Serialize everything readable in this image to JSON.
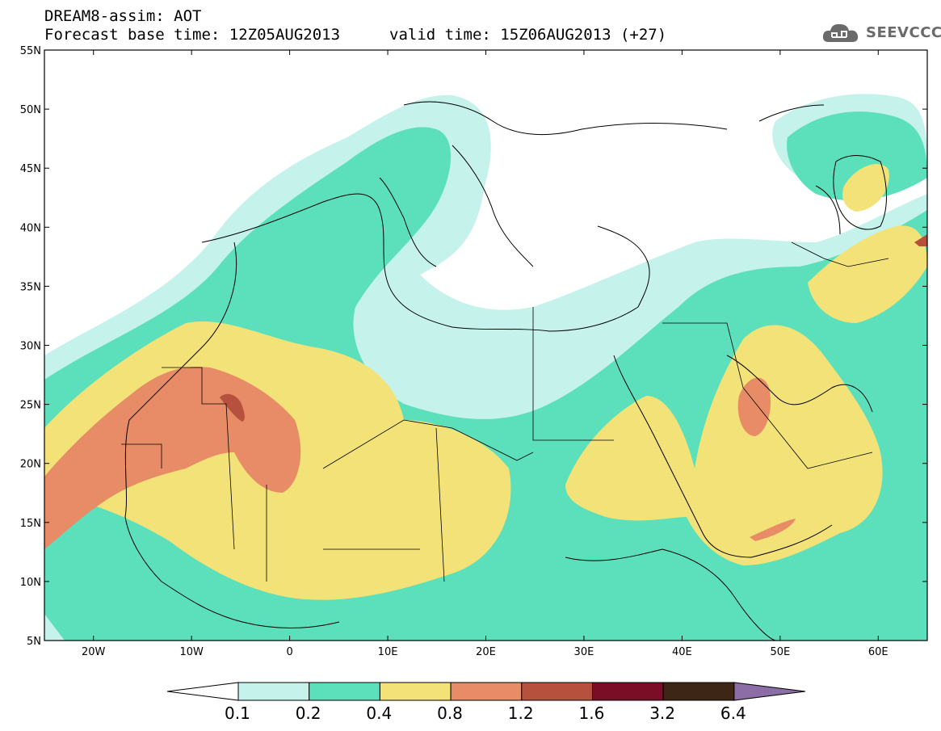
{
  "header": {
    "title": "DREAM8-assim: AOT",
    "forecast_base": "Forecast base time: 12Z05AUG2013",
    "valid_time": "valid time: 15Z06AUG2013 (+27)"
  },
  "logo": {
    "text": "SEEVCCC",
    "icon": "cloud-icon"
  },
  "map": {
    "lat_labels": [
      "55N",
      "50N",
      "45N",
      "40N",
      "35N",
      "30N",
      "25N",
      "20N",
      "15N",
      "10N",
      "5N"
    ],
    "lon_labels": [
      "20W",
      "10W",
      "0",
      "10E",
      "20E",
      "30E",
      "40E",
      "50E",
      "60E"
    ]
  },
  "colorbar": {
    "labels": [
      "0.1",
      "0.2",
      "0.4",
      "0.8",
      "1.2",
      "1.6",
      "3.2",
      "6.4"
    ],
    "colors": [
      "#ffffff",
      "#c6f2ec",
      "#5ce0bb",
      "#f3e278",
      "#e88c67",
      "#b5513d",
      "#7a0e26",
      "#3d2616",
      "#8d6da6"
    ]
  },
  "colors": {
    "c01": "#c6f2ec",
    "c02": "#5ce0bb",
    "c04": "#f3e278",
    "c08": "#e88c67",
    "c12": "#b5513d"
  }
}
